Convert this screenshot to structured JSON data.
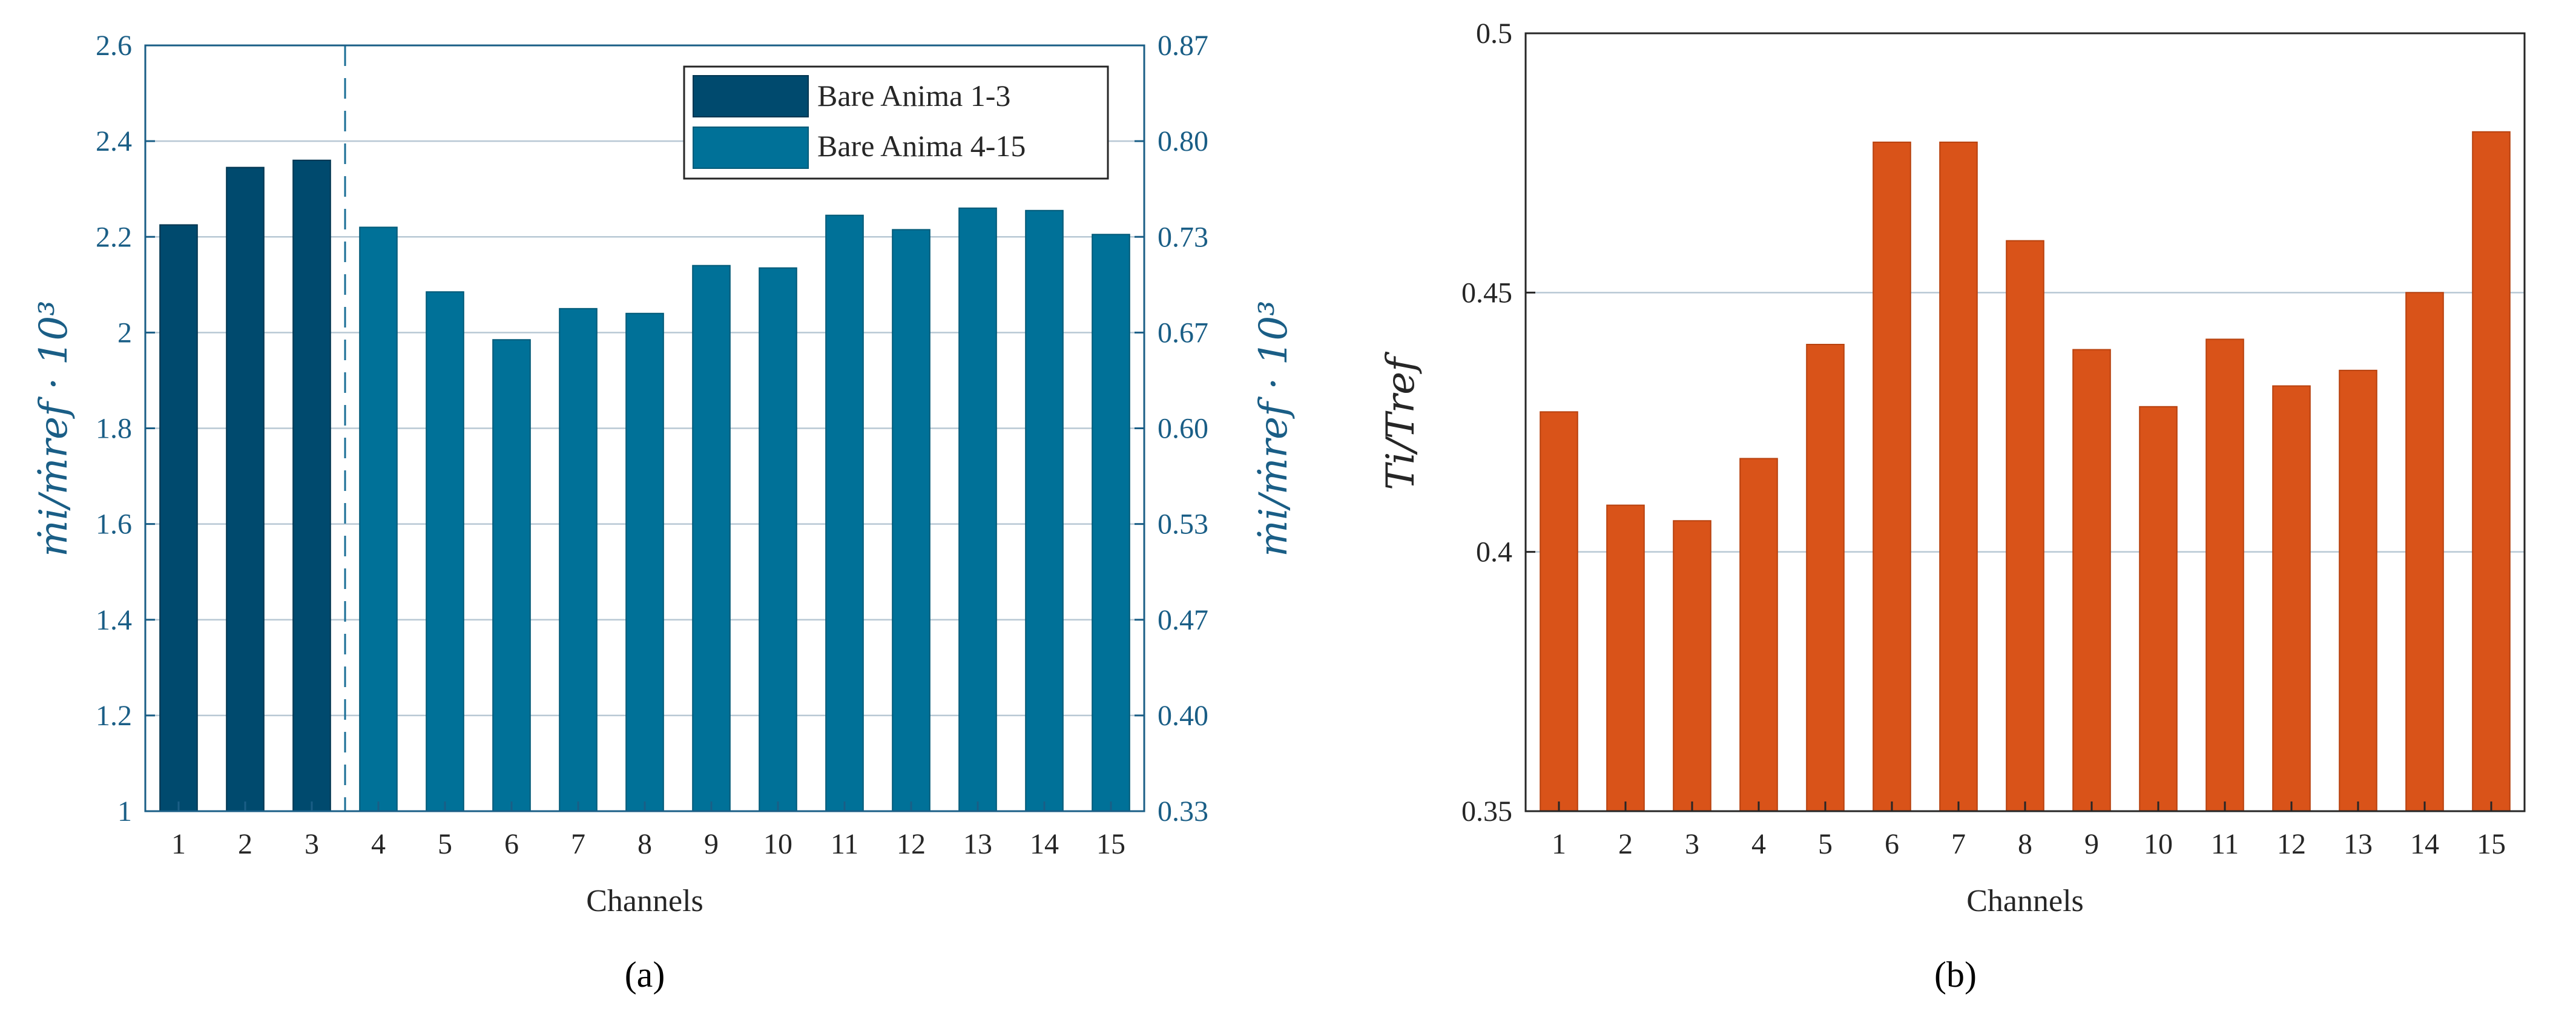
{
  "chart_data": [
    {
      "type": "bar",
      "panel_label": "(a)",
      "categories": [
        "1",
        "2",
        "3",
        "4",
        "5",
        "6",
        "7",
        "8",
        "9",
        "10",
        "11",
        "12",
        "13",
        "14",
        "15"
      ],
      "series": [
        {
          "name": "Bare Anima 1-3",
          "color": "#004a6e",
          "values": [
            2.225,
            2.345,
            2.36,
            null,
            null,
            null,
            null,
            null,
            null,
            null,
            null,
            null,
            null,
            null,
            null
          ]
        },
        {
          "name": "Bare Anima 4-15",
          "color": "#007198",
          "values": [
            null,
            null,
            null,
            2.22,
            2.085,
            1.985,
            2.05,
            2.04,
            2.14,
            2.135,
            2.245,
            2.215,
            2.26,
            2.255,
            2.205
          ]
        }
      ],
      "xlabel": "Channels",
      "ylabel_left": "ṁi/ṁref · 10³",
      "ylabel_right": "ṁi/ṁref · 10³",
      "ylim": [
        1,
        2.6
      ],
      "yticks_left": [
        "1",
        "1.2",
        "1.4",
        "1.6",
        "1.8",
        "2",
        "2.2",
        "2.4",
        "2.6"
      ],
      "yticks_right": [
        "0.33",
        "0.40",
        "0.47",
        "0.53",
        "0.60",
        "0.67",
        "0.73",
        "0.80",
        "0.87"
      ],
      "divider_after_channel": 3,
      "legend_position": "top-right"
    },
    {
      "type": "bar",
      "panel_label": "(b)",
      "categories": [
        "1",
        "2",
        "3",
        "4",
        "5",
        "6",
        "7",
        "8",
        "9",
        "10",
        "11",
        "12",
        "13",
        "14",
        "15"
      ],
      "series": [
        {
          "name": "Ti/Tref",
          "color": "#d95319",
          "values": [
            0.427,
            0.409,
            0.406,
            0.418,
            0.44,
            0.479,
            0.479,
            0.46,
            0.439,
            0.428,
            0.441,
            0.432,
            0.435,
            0.45,
            0.481
          ]
        }
      ],
      "xlabel": "Channels",
      "ylabel": "Ti/Tref",
      "ylim": [
        0.35,
        0.5
      ],
      "yticks": [
        "0.35",
        "0.4",
        "0.45",
        "0.5"
      ]
    }
  ]
}
